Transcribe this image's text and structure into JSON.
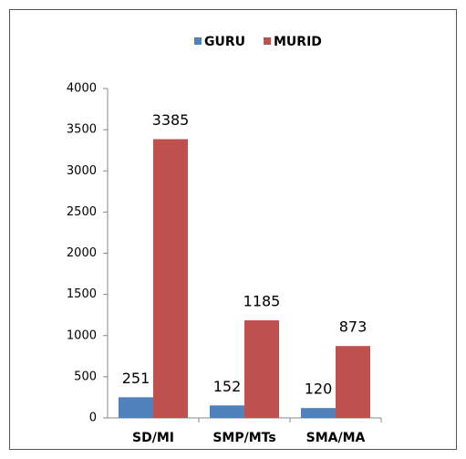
{
  "chart_data": {
    "type": "bar",
    "categories": [
      "SD/MI",
      "SMP/MTs",
      "SMA/MA"
    ],
    "series": [
      {
        "name": "GURU",
        "color": "#4f81bd",
        "values": [
          251,
          152,
          120
        ]
      },
      {
        "name": "MURID",
        "color": "#c0504d",
        "values": [
          3385,
          1185,
          873
        ]
      }
    ],
    "ylim": [
      0,
      4000
    ],
    "yticks": [
      0,
      500,
      1000,
      1500,
      2000,
      2500,
      3000,
      3500,
      4000
    ],
    "grid": false,
    "legend": "top"
  }
}
